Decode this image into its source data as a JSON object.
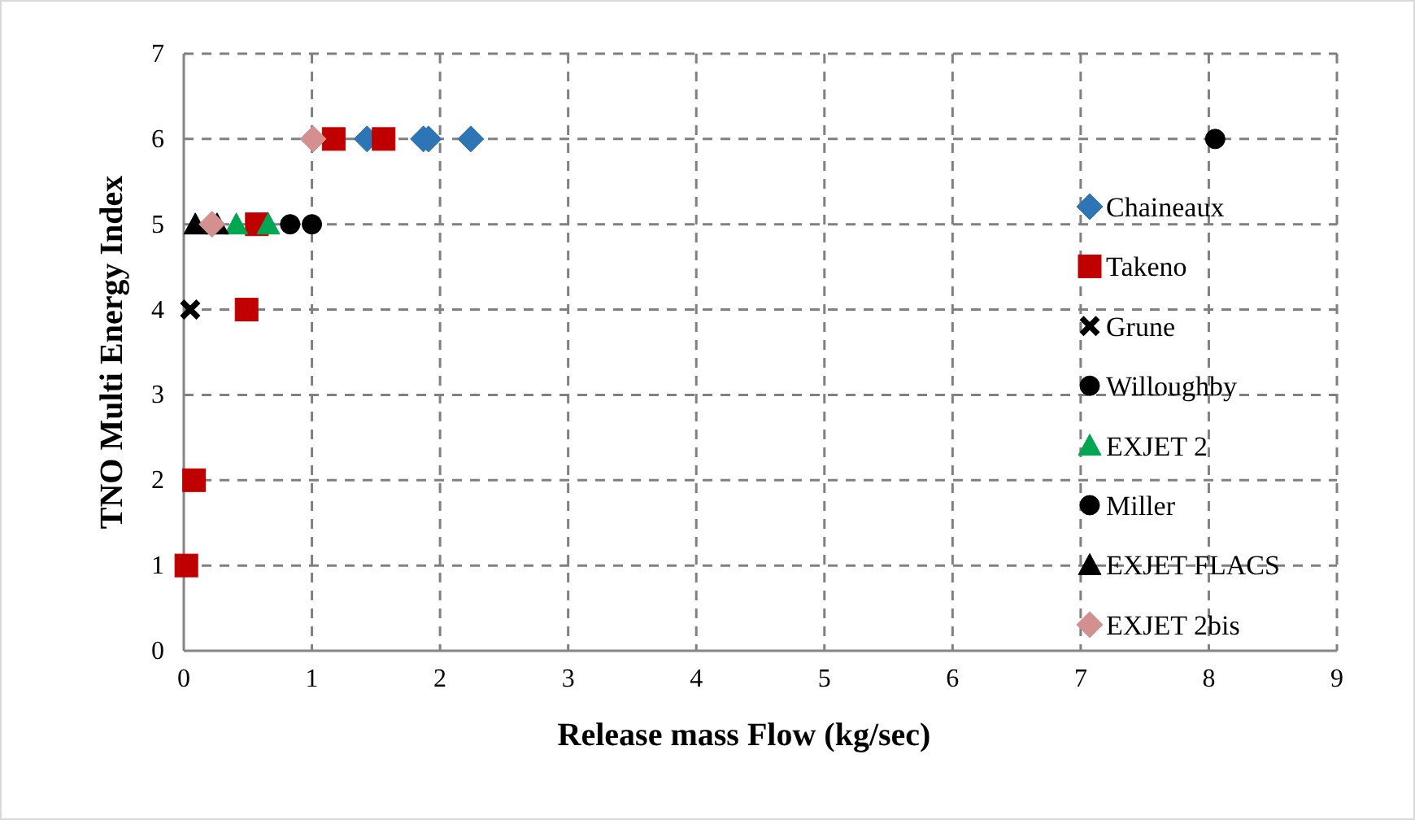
{
  "chart_data": {
    "type": "scatter",
    "xlabel": "Release mass Flow (kg/sec)",
    "ylabel": "TNO Multi Energy Index",
    "xlim": [
      0,
      9
    ],
    "ylim": [
      0,
      7
    ],
    "xticks": [
      0,
      1,
      2,
      3,
      4,
      5,
      6,
      7,
      8,
      9
    ],
    "yticks": [
      0,
      1,
      2,
      3,
      4,
      5,
      6,
      7
    ],
    "grid": true,
    "legend": "right",
    "series": [
      {
        "name": "Chaineaux",
        "color": "#2e75b6",
        "marker": "diamond",
        "x": [
          1.43,
          1.87,
          1.91,
          2.24
        ],
        "values": [
          6,
          6,
          6,
          6
        ]
      },
      {
        "name": "Takeno",
        "color": "#c00000",
        "marker": "square",
        "x": [
          0.02,
          0.08,
          0.49,
          0.57,
          1.17,
          1.56
        ],
        "values": [
          1,
          2,
          4,
          5,
          6,
          6
        ]
      },
      {
        "name": "Grune",
        "color": "#000000",
        "marker": "cross",
        "x": [
          0.05
        ],
        "values": [
          4
        ]
      },
      {
        "name": "Willoughby",
        "color": "#000000",
        "marker": "circle",
        "x": [
          0.83
        ],
        "values": [
          5
        ]
      },
      {
        "name": "EXJET 2",
        "color": "#00a651",
        "marker": "triangle",
        "x": [
          0.41,
          0.66
        ],
        "values": [
          5,
          5
        ]
      },
      {
        "name": "Miller",
        "color": "#000000",
        "marker": "circle",
        "x": [
          1.0,
          8.05
        ],
        "values": [
          5,
          6
        ]
      },
      {
        "name": "EXJET FLACS",
        "color": "#000000",
        "marker": "triangle",
        "x": [
          0.09,
          0.26
        ],
        "values": [
          5,
          5
        ]
      },
      {
        "name": "EXJET 2bis",
        "color": "#d48f8f",
        "marker": "diamond",
        "x": [
          0.22,
          1.01
        ],
        "values": [
          5,
          6
        ]
      }
    ]
  }
}
